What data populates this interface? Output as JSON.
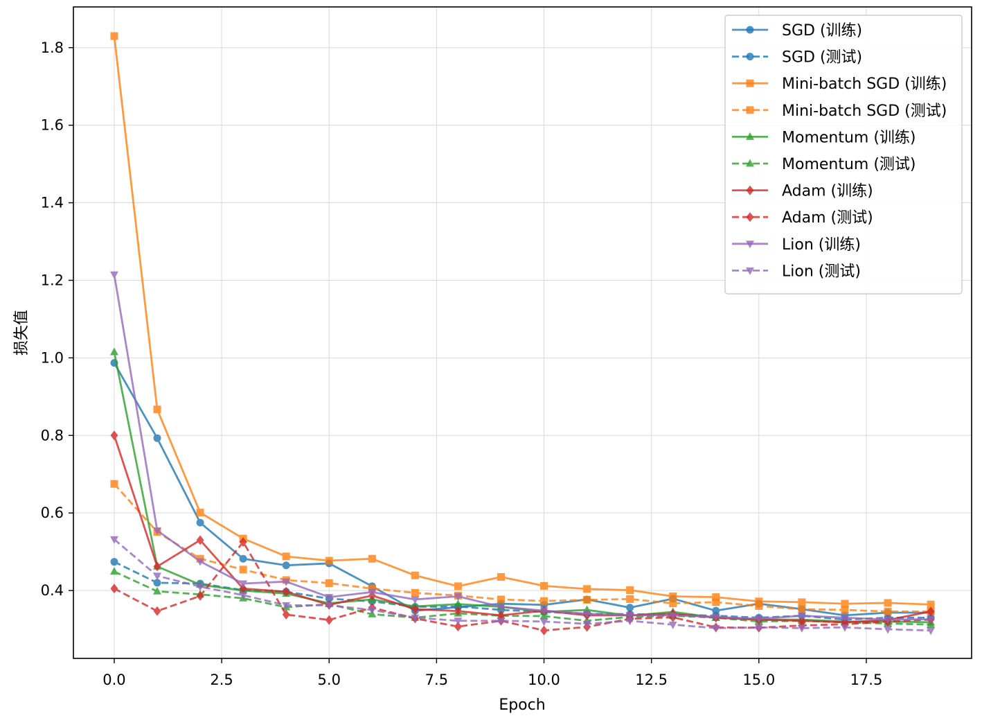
{
  "chart_data": {
    "type": "line",
    "title": "",
    "xlabel": "Epoch",
    "ylabel": "损失值",
    "xlim": [
      -0.95,
      19.95
    ],
    "ylim": [
      0.225,
      1.905
    ],
    "x_ticks": [
      0.0,
      2.5,
      5.0,
      7.5,
      10.0,
      12.5,
      15.0,
      17.5
    ],
    "x_tick_labels": [
      "0.0",
      "2.5",
      "5.0",
      "7.5",
      "10.0",
      "12.5",
      "15.0",
      "17.5"
    ],
    "y_ticks": [
      0.4,
      0.6,
      0.8,
      1.0,
      1.2,
      1.4,
      1.6,
      1.8
    ],
    "y_tick_labels": [
      "0.4",
      "0.6",
      "0.8",
      "1.0",
      "1.2",
      "1.4",
      "1.6",
      "1.8"
    ],
    "grid": true,
    "legend_position": "top-right",
    "x": [
      0,
      1,
      2,
      3,
      4,
      5,
      6,
      7,
      8,
      9,
      10,
      11,
      12,
      13,
      14,
      15,
      16,
      17,
      18,
      19
    ],
    "series": [
      {
        "name": "SGD (训练)",
        "color": "#1f77b4",
        "dash": "solid",
        "marker": "circle",
        "values": [
          0.987,
          0.793,
          0.575,
          0.482,
          0.465,
          0.47,
          0.411,
          0.348,
          0.357,
          0.366,
          0.363,
          0.377,
          0.356,
          0.379,
          0.348,
          0.366,
          0.352,
          0.336,
          0.343,
          0.343
        ]
      },
      {
        "name": "SGD (测试)",
        "color": "#1f77b4",
        "dash": "dashed",
        "marker": "circle",
        "values": [
          0.474,
          0.42,
          0.418,
          0.401,
          0.397,
          0.379,
          0.372,
          0.358,
          0.359,
          0.35,
          0.345,
          0.34,
          0.339,
          0.338,
          0.335,
          0.33,
          0.335,
          0.325,
          0.33,
          0.33
        ]
      },
      {
        "name": "Mini-batch SGD (训练)",
        "color": "#ff7f0e",
        "dash": "solid",
        "marker": "square",
        "values": [
          1.83,
          0.867,
          0.601,
          0.534,
          0.488,
          0.477,
          0.482,
          0.439,
          0.411,
          0.435,
          0.412,
          0.404,
          0.401,
          0.385,
          0.383,
          0.372,
          0.37,
          0.366,
          0.368,
          0.364
        ]
      },
      {
        "name": "Mini-batch SGD (测试)",
        "color": "#ff7f0e",
        "dash": "dashed",
        "marker": "square",
        "values": [
          0.675,
          0.551,
          0.482,
          0.454,
          0.427,
          0.419,
          0.405,
          0.394,
          0.387,
          0.377,
          0.373,
          0.376,
          0.378,
          0.367,
          0.37,
          0.36,
          0.352,
          0.35,
          0.346,
          0.346
        ]
      },
      {
        "name": "Momentum (训练)",
        "color": "#2ca02c",
        "dash": "solid",
        "marker": "triangle-up",
        "values": [
          1.015,
          0.462,
          0.415,
          0.4,
          0.392,
          0.367,
          0.377,
          0.359,
          0.365,
          0.358,
          0.345,
          0.35,
          0.335,
          0.345,
          0.33,
          0.325,
          0.325,
          0.32,
          0.32,
          0.318
        ]
      },
      {
        "name": "Momentum (测试)",
        "color": "#2ca02c",
        "dash": "dashed",
        "marker": "triangle-up",
        "values": [
          0.449,
          0.398,
          0.39,
          0.38,
          0.357,
          0.365,
          0.339,
          0.33,
          0.341,
          0.335,
          0.334,
          0.322,
          0.332,
          0.335,
          0.33,
          0.32,
          0.322,
          0.318,
          0.315,
          0.312
        ]
      },
      {
        "name": "Adam (训练)",
        "color": "#d62728",
        "dash": "solid",
        "marker": "diamond",
        "values": [
          0.8,
          0.462,
          0.53,
          0.405,
          0.397,
          0.363,
          0.387,
          0.352,
          0.347,
          0.336,
          0.348,
          0.336,
          0.336,
          0.34,
          0.33,
          0.325,
          0.322,
          0.318,
          0.324,
          0.346
        ]
      },
      {
        "name": "Adam (测试)",
        "color": "#d62728",
        "dash": "dashed",
        "marker": "diamond",
        "values": [
          0.405,
          0.347,
          0.386,
          0.525,
          0.338,
          0.324,
          0.356,
          0.328,
          0.307,
          0.322,
          0.297,
          0.306,
          0.327,
          0.331,
          0.305,
          0.304,
          0.31,
          0.313,
          0.32,
          0.325
        ]
      },
      {
        "name": "Lion (训练)",
        "color": "#9467bd",
        "dash": "solid",
        "marker": "triangle-down",
        "values": [
          1.215,
          0.555,
          0.475,
          0.418,
          0.423,
          0.383,
          0.396,
          0.377,
          0.385,
          0.358,
          0.348,
          0.34,
          0.336,
          0.336,
          0.332,
          0.327,
          0.335,
          0.33,
          0.325,
          0.326
        ]
      },
      {
        "name": "Lion (测试)",
        "color": "#9467bd",
        "dash": "dashed",
        "marker": "triangle-down",
        "values": [
          0.532,
          0.438,
          0.41,
          0.388,
          0.362,
          0.362,
          0.35,
          0.33,
          0.322,
          0.322,
          0.32,
          0.314,
          0.322,
          0.312,
          0.303,
          0.305,
          0.303,
          0.305,
          0.3,
          0.297
        ]
      }
    ]
  }
}
